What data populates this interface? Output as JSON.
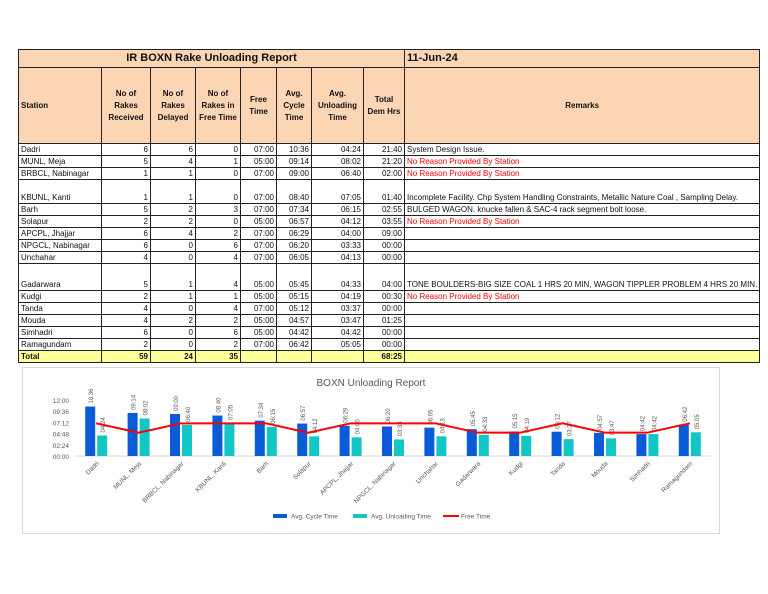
{
  "report": {
    "title": "IR BOXN Rake Unloading Report",
    "date": "11-Jun-24",
    "columns": [
      "Station",
      "No of Rakes Received",
      "No of Rakes Delayed",
      "No of Rakes in Free Time",
      "Free Time",
      "Avg. Cycle Time",
      "Avg. Unloading Time",
      "Total Dem Hrs",
      "Remarks"
    ],
    "rows": [
      {
        "station": "Dadri",
        "received": "6",
        "delayed": "6",
        "in_free": "0",
        "free": "07:00",
        "cycle": "10:36",
        "unload": "04:24",
        "dem": "21:40",
        "remarks": "System Design Issue.",
        "red": false
      },
      {
        "station": "MUNL, Meja",
        "received": "5",
        "delayed": "4",
        "in_free": "1",
        "free": "05:00",
        "cycle": "09:14",
        "unload": "08:02",
        "dem": "21:20",
        "remarks": "No Reason Provided By Station",
        "red": true
      },
      {
        "station": "BRBCL, Nabinagar",
        "received": "1",
        "delayed": "1",
        "in_free": "0",
        "free": "07:00",
        "cycle": "09:00",
        "unload": "06:40",
        "dem": "02:00",
        "remarks": "No Reason Provided By Station",
        "red": true
      },
      {
        "station": "KBUNL, Kanti",
        "received": "1",
        "delayed": "1",
        "in_free": "0",
        "free": "07:00",
        "cycle": "08:40",
        "unload": "07:05",
        "dem": "01:40",
        "remarks": "Incomplete Facility. Chp System Handling Constraints, Metallic Nature Coal , Sampling Delay.",
        "red": false
      },
      {
        "station": "Barh",
        "received": "5",
        "delayed": "2",
        "in_free": "3",
        "free": "07:00",
        "cycle": "07:34",
        "unload": "06:15",
        "dem": "02:55",
        "remarks": "BULGED WAGON. knucke fallen & SAC-4 rack segment bolt loose.",
        "red": false
      },
      {
        "station": "Solapur",
        "received": "2",
        "delayed": "2",
        "in_free": "0",
        "free": "05:00",
        "cycle": "06:57",
        "unload": "04:12",
        "dem": "03:55",
        "remarks": "No Reason Provided By Station",
        "red": true
      },
      {
        "station": "APCPL, Jhajjar",
        "received": "6",
        "delayed": "4",
        "in_free": "2",
        "free": "07:00",
        "cycle": "06:29",
        "unload": "04:00",
        "dem": "09:00",
        "remarks": "",
        "red": false
      },
      {
        "station": "NPGCL, Nabinagar",
        "received": "6",
        "delayed": "0",
        "in_free": "6",
        "free": "07:00",
        "cycle": "06:20",
        "unload": "03:33",
        "dem": "00:00",
        "remarks": "",
        "red": false
      },
      {
        "station": "Unchahar",
        "received": "4",
        "delayed": "0",
        "in_free": "4",
        "free": "07:00",
        "cycle": "06:05",
        "unload": "04:13",
        "dem": "00:00",
        "remarks": "",
        "red": false
      },
      {
        "station": "Gadarwara",
        "received": "5",
        "delayed": "1",
        "in_free": "4",
        "free": "05:00",
        "cycle": "05:45",
        "unload": "04:33",
        "dem": "04:00",
        "remarks": "TONE BOULDERS-BIG SIZE COAL 1 HRS 20 MIN, WAGON TIPPLER PROBLEM 4 HRS 20 MIN.",
        "red": false
      },
      {
        "station": "Kudgi",
        "received": "2",
        "delayed": "1",
        "in_free": "1",
        "free": "05:00",
        "cycle": "05:15",
        "unload": "04:19",
        "dem": "00:30",
        "remarks": "No Reason Provided By Station",
        "red": true
      },
      {
        "station": "Tanda",
        "received": "4",
        "delayed": "0",
        "in_free": "4",
        "free": "07:00",
        "cycle": "05:12",
        "unload": "03:37",
        "dem": "00:00",
        "remarks": "",
        "red": false
      },
      {
        "station": "Mouda",
        "received": "4",
        "delayed": "2",
        "in_free": "2",
        "free": "05:00",
        "cycle": "04:57",
        "unload": "03:47",
        "dem": "01:25",
        "remarks": "",
        "red": false
      },
      {
        "station": "Simhadri",
        "received": "6",
        "delayed": "0",
        "in_free": "6",
        "free": "05:00",
        "cycle": "04:42",
        "unload": "04:42",
        "dem": "00:00",
        "remarks": "",
        "red": false
      },
      {
        "station": "Ramagundam",
        "received": "2",
        "delayed": "0",
        "in_free": "2",
        "free": "07:00",
        "cycle": "06:42",
        "unload": "05:05",
        "dem": "00:00",
        "remarks": "",
        "red": false
      }
    ],
    "total": {
      "label": "Total",
      "received": "59",
      "delayed": "24",
      "in_free": "35",
      "dem": "68:25"
    }
  },
  "chart_data": {
    "type": "bar",
    "title": "BOXN Unloading Report",
    "categories": [
      "Dadri",
      "MUNL, Meja",
      "BRBCL, Nabinagar",
      "KBUNL, Kanti",
      "Barh",
      "Solapur",
      "APCPL, Jhajjar",
      "NPGCL, Nabinagar",
      "Unchahar",
      "Gadarwara",
      "Kudgi",
      "Tanda",
      "Mouda",
      "Simhadri",
      "Ramagundam"
    ],
    "yticks": [
      "00:00",
      "02:24",
      "04:48",
      "07:12",
      "09:36",
      "12:00"
    ],
    "ylim_hours": [
      0,
      12
    ],
    "grid": false,
    "legend": "bottom",
    "series": [
      {
        "name": "Avg. Cycle Time",
        "kind": "bar",
        "color": "#0a5bd8",
        "values": [
          "10:36",
          "09:14",
          "09:00",
          "08:40",
          "07:34",
          "06:57",
          "06:29",
          "06:20",
          "06:05",
          "05:45",
          "05:15",
          "05:12",
          "04:57",
          "04:42",
          "06:42"
        ]
      },
      {
        "name": "Avg. Unloading Time",
        "kind": "bar",
        "color": "#13c6c6",
        "values": [
          "04:24",
          "08:02",
          "06:40",
          "07:05",
          "06:15",
          "04:12",
          "04:00",
          "03:33",
          "04:13",
          "04:33",
          "04:19",
          "03:37",
          "03:47",
          "04:42",
          "05:05"
        ]
      },
      {
        "name": "Free Time",
        "kind": "line",
        "color": "#ff0000",
        "values": [
          "07:00",
          "05:00",
          "07:00",
          "07:00",
          "07:00",
          "05:00",
          "07:00",
          "07:00",
          "07:00",
          "05:00",
          "05:00",
          "07:00",
          "05:00",
          "05:00",
          "07:00"
        ]
      }
    ]
  }
}
